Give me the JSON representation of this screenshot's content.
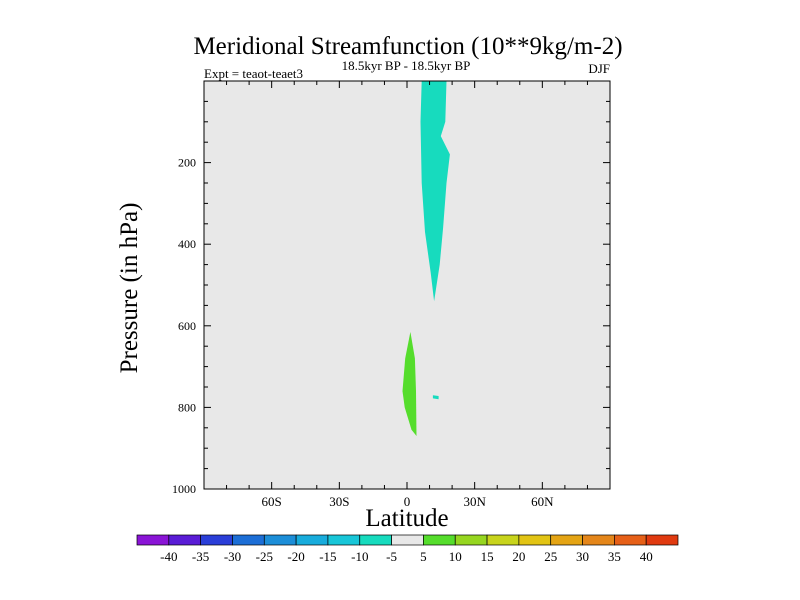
{
  "chart_data": {
    "type": "heatmap",
    "title": "Meridional Streamfunction (10**9kg/m-2)",
    "subtitle": "18.5kyr BP - 18.5kyr BP",
    "left_label": "Expt = teaot-teaet3",
    "right_label": "DJF",
    "xlabel": "Latitude",
    "ylabel": "Pressure (in hPa)",
    "xlim": [
      -90,
      90
    ],
    "ylim": [
      0,
      1000
    ],
    "y_reversed": true,
    "x_ticks": [
      {
        "value": -60,
        "label": "60S"
      },
      {
        "value": -30,
        "label": "30S"
      },
      {
        "value": 0,
        "label": "0"
      },
      {
        "value": 30,
        "label": "30N"
      },
      {
        "value": 60,
        "label": "60N"
      }
    ],
    "y_ticks": [
      {
        "value": 200,
        "label": "200"
      },
      {
        "value": 400,
        "label": "400"
      },
      {
        "value": 600,
        "label": "600"
      },
      {
        "value": 800,
        "label": "800"
      },
      {
        "value": 1000,
        "label": "1000"
      }
    ],
    "background_color": "#e8e8e8",
    "regions": [
      {
        "name": "negative-cell-upper",
        "level": "-10 to -5",
        "color": "#17dbbe",
        "polygon": [
          [
            6.5,
            0
          ],
          [
            17.5,
            0
          ],
          [
            17,
            100
          ],
          [
            15,
            135
          ],
          [
            19,
            180
          ],
          [
            17.5,
            250
          ],
          [
            16,
            360
          ],
          [
            14.5,
            450
          ],
          [
            12,
            540
          ],
          [
            10.5,
            470
          ],
          [
            8,
            370
          ],
          [
            6.5,
            250
          ],
          [
            6,
            100
          ]
        ]
      },
      {
        "name": "positive-cell-lower",
        "level": "5 to 10",
        "color": "#55dd2c",
        "polygon": [
          [
            1.5,
            615
          ],
          [
            3.5,
            680
          ],
          [
            4,
            760
          ],
          [
            4.2,
            870
          ],
          [
            2,
            855
          ],
          [
            -1,
            800
          ],
          [
            -2,
            760
          ],
          [
            -0.8,
            680
          ]
        ]
      },
      {
        "name": "negative-spot",
        "level": "-10 to -5",
        "color": "#17dbbe",
        "polygon": [
          [
            11.5,
            770
          ],
          [
            14,
            772
          ],
          [
            14,
            780
          ],
          [
            11.5,
            778
          ]
        ]
      }
    ],
    "colorbar": {
      "labels": [
        "-40",
        "-35",
        "-30",
        "-25",
        "-20",
        "-15",
        "-10",
        "-5",
        "5",
        "10",
        "15",
        "20",
        "25",
        "30",
        "35",
        "40"
      ],
      "colors": [
        "#8a14d6",
        "#5a1cd6",
        "#2a3ed8",
        "#1c6ed6",
        "#1c8ed8",
        "#18acdc",
        "#18c6d8",
        "#17dbbe",
        "#e8e8e8",
        "#55dd2c",
        "#96d620",
        "#c8d41c",
        "#e2c414",
        "#e4a414",
        "#e4861a",
        "#e66018",
        "#e03a10"
      ]
    }
  }
}
